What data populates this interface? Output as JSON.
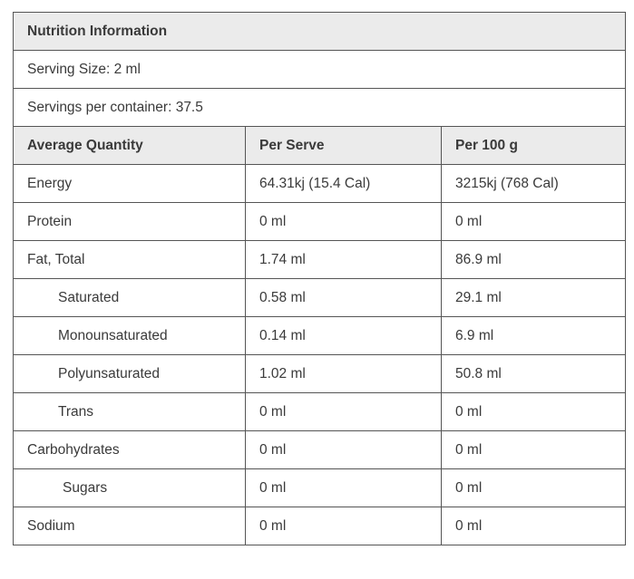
{
  "title": "Nutrition Information",
  "serving_size": "Serving Size: 2 ml",
  "servings_per_container": "Servings per container: 37.5",
  "headers": {
    "quantity": "Average Quantity",
    "per_serve": "Per Serve",
    "per_100": "Per 100 g"
  },
  "rows": [
    {
      "name": "Energy",
      "per_serve": "64.31kj (15.4 Cal)",
      "per_100": "3215kj (768 Cal)"
    },
    {
      "name": "Protein",
      "per_serve": "0 ml",
      "per_100": "0 ml"
    },
    {
      "name": "Fat, Total",
      "per_serve": "1.74 ml",
      "per_100": "86.9 ml"
    },
    {
      "name": "Saturated",
      "per_serve": "0.58 ml",
      "per_100": "29.1 ml"
    },
    {
      "name": "Monounsaturated",
      "per_serve": "0.14 ml",
      "per_100": "6.9 ml"
    },
    {
      "name": "Polyunsaturated",
      "per_serve": "1.02 ml",
      "per_100": "50.8 ml"
    },
    {
      "name": "Trans",
      "per_serve": "0 ml",
      "per_100": "0 ml"
    },
    {
      "name": "Carbohydrates",
      "per_serve": "0 ml",
      "per_100": "0 ml"
    },
    {
      "name": "Sugars",
      "per_serve": "0 ml",
      "per_100": "0 ml"
    },
    {
      "name": "Sodium",
      "per_serve": "0 ml",
      "per_100": "0 ml"
    }
  ]
}
